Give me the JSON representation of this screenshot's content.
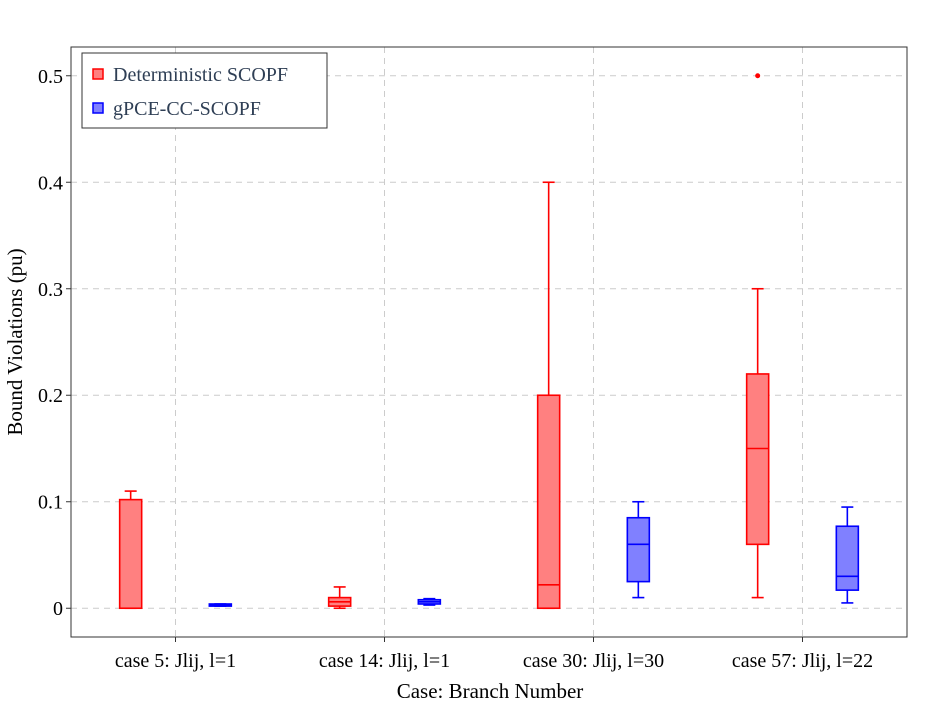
{
  "chart_data": {
    "type": "boxplot",
    "title": "",
    "xlabel": "Case: Branch Number",
    "ylabel": "Bound Violations (pu)",
    "ylim": [
      -0.027,
      0.527
    ],
    "yticks": [
      0,
      0.1,
      0.2,
      0.3,
      0.4,
      0.5
    ],
    "ytick_labels": [
      "0",
      "0.1",
      "0.2",
      "0.3",
      "0.4",
      "0.5"
    ],
    "grid": true,
    "legend_position": "top-left",
    "categories": [
      "case 5: Jlij, l=1",
      "case 14: Jlij, l=1",
      "case 30: Jlij, l=30",
      "case 57: Jlij, l=22"
    ],
    "series": [
      {
        "name": "Deterministic SCOPF",
        "color": "#ff0000",
        "fill": "#ff8080",
        "boxes": [
          {
            "whisker_low": 0.0,
            "q1": 0.0,
            "median": 0.0,
            "q3": 0.102,
            "whisker_high": 0.11,
            "outliers": []
          },
          {
            "whisker_low": 0.0,
            "q1": 0.002,
            "median": 0.006,
            "q3": 0.01,
            "whisker_high": 0.02,
            "outliers": []
          },
          {
            "whisker_low": 0.0,
            "q1": 0.0,
            "median": 0.022,
            "q3": 0.2,
            "whisker_high": 0.4,
            "outliers": []
          },
          {
            "whisker_low": 0.01,
            "q1": 0.06,
            "median": 0.15,
            "q3": 0.22,
            "whisker_high": 0.3,
            "outliers": [
              0.5
            ]
          }
        ]
      },
      {
        "name": "gPCE-CC-SCOPF",
        "color": "#0000ff",
        "fill": "#8080ff",
        "boxes": [
          {
            "whisker_low": 0.002,
            "q1": 0.002,
            "median": 0.003,
            "q3": 0.004,
            "whisker_high": 0.004,
            "outliers": []
          },
          {
            "whisker_low": 0.003,
            "q1": 0.004,
            "median": 0.006,
            "q3": 0.008,
            "whisker_high": 0.009,
            "outliers": []
          },
          {
            "whisker_low": 0.01,
            "q1": 0.025,
            "median": 0.06,
            "q3": 0.085,
            "whisker_high": 0.1,
            "outliers": []
          },
          {
            "whisker_low": 0.005,
            "q1": 0.017,
            "median": 0.03,
            "q3": 0.077,
            "whisker_high": 0.095,
            "outliers": []
          }
        ]
      }
    ]
  }
}
